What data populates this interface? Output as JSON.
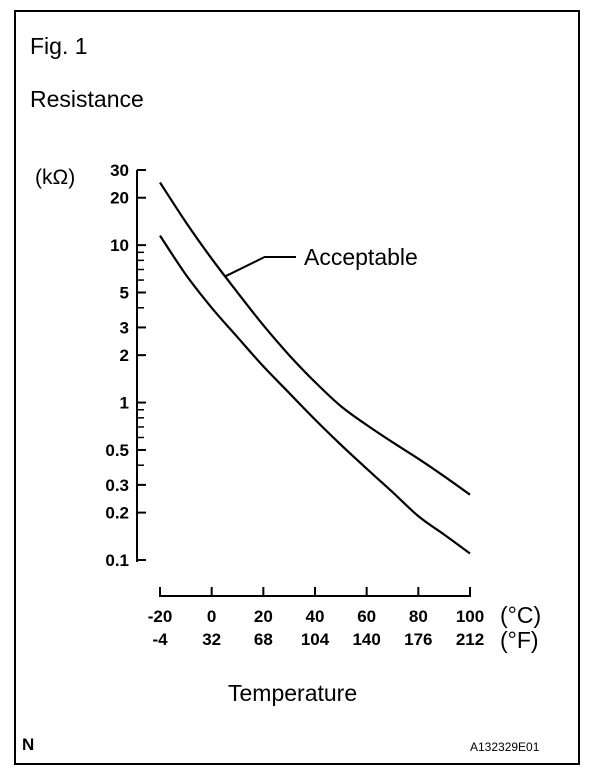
{
  "figure": {
    "label": "Fig. 1",
    "corner_mark": "N",
    "code": "A132329E01"
  },
  "chart_data": {
    "type": "line",
    "title": "Resistance",
    "ylabel": "(kΩ)",
    "xlabel": "Temperature",
    "y_scale": "log",
    "ylim": [
      0.1,
      30
    ],
    "xlim": [
      -20,
      100
    ],
    "y_ticks": [
      30,
      20,
      10,
      5,
      3,
      2,
      1,
      0.5,
      0.3,
      0.2,
      0.1
    ],
    "y_tick_labels": [
      "30",
      "20",
      "10",
      "5",
      "3",
      "2",
      "1",
      "0.5",
      "0.3",
      "0.2",
      "0.1"
    ],
    "y_minor_ticks": [
      9,
      8,
      7,
      6,
      4,
      0.9,
      0.8,
      0.7,
      0.6,
      0.4
    ],
    "x_ticks_c": [
      -20,
      0,
      20,
      40,
      60,
      80,
      100
    ],
    "x_tick_labels_c": [
      "-20",
      "0",
      "20",
      "40",
      "60",
      "80",
      "100"
    ],
    "x_tick_labels_f": [
      "-4",
      "32",
      "68",
      "104",
      "140",
      "176",
      "212"
    ],
    "x_unit_c": "(°C)",
    "x_unit_f": "(°F)",
    "annotation": "Acceptable",
    "grid": false,
    "series": [
      {
        "x": [
          -20,
          -10,
          0,
          10,
          20,
          30,
          40,
          50,
          60,
          70,
          80,
          90,
          100
        ],
        "values": [
          25,
          14,
          8.2,
          5.0,
          3.1,
          2.0,
          1.35,
          0.95,
          0.72,
          0.56,
          0.44,
          0.34,
          0.26
        ]
      },
      {
        "x": [
          -20,
          -10,
          0,
          10,
          20,
          30,
          40,
          50,
          60,
          70,
          80,
          90,
          100
        ],
        "values": [
          11.5,
          6.5,
          4.0,
          2.6,
          1.7,
          1.15,
          0.78,
          0.54,
          0.38,
          0.27,
          0.19,
          0.145,
          0.11
        ]
      }
    ]
  }
}
